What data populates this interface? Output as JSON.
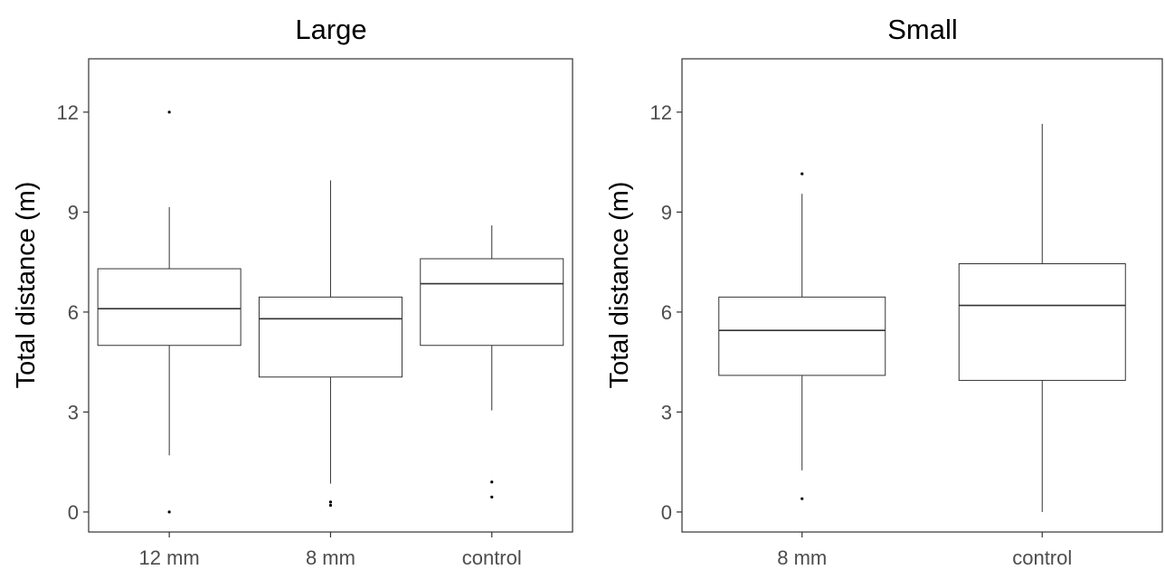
{
  "chart_data": [
    {
      "type": "box",
      "title": "Large",
      "ylabel": "Total distance (m)",
      "xlabel": "",
      "ylim": [
        -0.6,
        13.6
      ],
      "yticks": [
        0,
        3,
        6,
        9,
        12
      ],
      "grid": false,
      "categories": [
        "12 mm",
        "8 mm",
        "control"
      ],
      "boxes": [
        {
          "category": "12 mm",
          "whisker_low": 1.7,
          "q1": 5.0,
          "median": 6.1,
          "q3": 7.3,
          "whisker_high": 9.15,
          "outliers": [
            0.0,
            12.0
          ]
        },
        {
          "category": "8 mm",
          "whisker_low": 0.85,
          "q1": 4.05,
          "median": 5.8,
          "q3": 6.45,
          "whisker_high": 9.95,
          "outliers": [
            0.2,
            0.3
          ]
        },
        {
          "category": "control",
          "whisker_low": 3.05,
          "q1": 5.0,
          "median": 6.85,
          "q3": 7.6,
          "whisker_high": 8.6,
          "outliers": [
            0.45,
            0.9
          ]
        }
      ]
    },
    {
      "type": "box",
      "title": "Small",
      "ylabel": "Total distance (m)",
      "xlabel": "",
      "ylim": [
        -0.6,
        13.6
      ],
      "yticks": [
        0,
        3,
        6,
        9,
        12
      ],
      "grid": false,
      "categories": [
        "8 mm",
        "control"
      ],
      "boxes": [
        {
          "category": "8 mm",
          "whisker_low": 1.25,
          "q1": 4.1,
          "median": 5.45,
          "q3": 6.45,
          "whisker_high": 9.55,
          "outliers": [
            0.4,
            10.15
          ]
        },
        {
          "category": "control",
          "whisker_low": 0.0,
          "q1": 3.95,
          "median": 6.2,
          "q3": 7.45,
          "whisker_high": 11.65,
          "outliers": []
        }
      ]
    }
  ]
}
